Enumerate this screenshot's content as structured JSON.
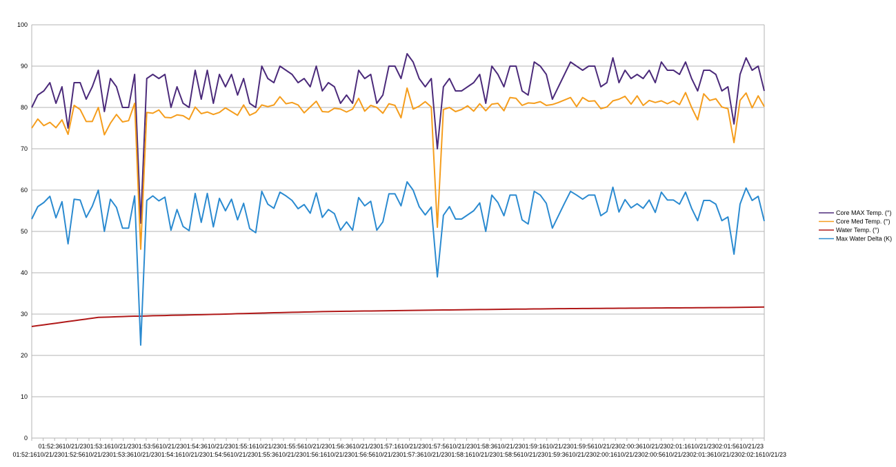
{
  "chart_data": {
    "type": "line",
    "title": "",
    "xlabel": "",
    "ylabel": "",
    "ylim": [
      0,
      100
    ],
    "yticks": [
      0,
      10,
      20,
      30,
      40,
      50,
      60,
      70,
      80,
      90,
      100
    ],
    "grid": "horizontal",
    "legend_position": "right",
    "x_tick_labels_row1": [
      "01:52:36",
      "10/21/23",
      "01:53:16",
      "10/21/23",
      "01:53:56",
      "10/21/23",
      "01:54:36",
      "10/21/23",
      "01:55:16",
      "10/21/23",
      "01:55:56",
      "10/21/23",
      "01:56:36",
      "10/21/23",
      "01:57:16",
      "10/21/23",
      "01:57:56",
      "10/21/23",
      "01:58:36",
      "10/21/23",
      "01:59:16",
      "10/21/23",
      "01:59:56",
      "10/21/23",
      "02:00:36",
      "10/21/23",
      "02:01:16",
      "10/21/23",
      "02:01:56",
      "10/21/23"
    ],
    "x_tick_labels_row2": [
      "01:52:16",
      "10/21/23",
      "01:52:56",
      "10/21/23",
      "01:53:36",
      "10/21/23",
      "01:54:16",
      "10/21/23",
      "01:54:56",
      "10/21/23",
      "01:55:36",
      "10/21/23",
      "01:56:16",
      "10/21/23",
      "01:56:56",
      "10/21/23",
      "01:57:36",
      "10/21/23",
      "01:58:16",
      "10/21/23",
      "01:58:56",
      "10/21/23",
      "01:59:36",
      "10/21/23",
      "02:00:16",
      "10/21/23",
      "02:00:56",
      "10/21/23",
      "02:01:36",
      "10/21/23",
      "02:02:16",
      "10/21/23"
    ],
    "series": [
      {
        "name": "Core MAX Temp. (°)",
        "color": "#4b2a7a",
        "values": [
          80,
          83,
          84,
          86,
          81,
          85,
          75,
          86,
          86,
          82,
          85,
          89,
          79,
          87,
          85,
          80,
          80,
          88,
          52,
          87,
          88,
          87,
          88,
          80,
          85,
          81,
          80,
          89,
          82,
          89,
          81,
          88,
          85,
          88,
          83,
          87,
          81,
          80,
          90,
          87,
          86,
          90,
          89,
          88,
          86,
          87,
          85,
          90,
          84,
          86,
          85,
          81,
          83,
          81,
          89,
          87,
          88,
          81,
          83,
          90,
          90,
          87,
          93,
          91,
          87,
          85,
          87,
          70,
          85,
          87,
          84,
          84,
          85,
          86,
          88,
          81,
          90,
          88,
          85,
          90,
          90,
          84,
          83,
          91,
          90,
          88,
          82,
          85,
          88,
          91,
          90,
          89,
          90,
          90,
          85,
          86,
          92,
          86,
          89,
          87,
          88,
          87,
          89,
          86,
          91,
          89,
          89,
          88,
          91,
          87,
          84,
          89,
          89,
          88,
          84,
          85,
          76,
          88,
          92,
          89,
          90,
          84
        ]
      },
      {
        "name": "Core Med Temp. (°)",
        "color": "#f59d1c",
        "values": [
          75,
          77.2,
          75.6,
          76.4,
          75.1,
          77,
          73.5,
          80.5,
          79.5,
          76.6,
          76.6,
          80,
          73.4,
          76.2,
          78.3,
          76.5,
          76.8,
          81,
          45.7,
          78.8,
          78.6,
          79.4,
          77.6,
          77.5,
          78.2,
          78,
          77.1,
          80.1,
          78.5,
          78.9,
          78.3,
          78.8,
          79.9,
          79,
          78.1,
          80.6,
          78.1,
          78.8,
          80.6,
          80.2,
          80.6,
          82.6,
          80.9,
          81.2,
          80.6,
          78.7,
          80.1,
          81.5,
          79,
          78.9,
          79.8,
          79.6,
          78.9,
          79.6,
          82.2,
          79.1,
          80.5,
          80,
          78.6,
          80.9,
          80.5,
          77.5,
          84.7,
          79.6,
          80.3,
          81.4,
          80.1,
          51,
          79.5,
          80,
          79,
          79.5,
          80.4,
          79.1,
          80.9,
          79.2,
          80.8,
          81,
          79.2,
          82.4,
          82.2,
          80.5,
          81.1,
          81,
          81.4,
          80.5,
          80.7,
          81.2,
          81.8,
          82.4,
          80.2,
          82.4,
          81.5,
          81.6,
          79.7,
          80.1,
          81.6,
          82,
          82.7,
          80.8,
          82.8,
          80.5,
          81.7,
          81.2,
          81.6,
          80.9,
          81.6,
          80.7,
          83.6,
          80,
          77,
          83.3,
          81.7,
          82.1,
          80.1,
          79.7,
          71.5,
          81.7,
          83.5,
          79.9,
          82.8,
          80.2
        ]
      },
      {
        "name": "Water Temp. (°)",
        "color": "#b01818",
        "values": [
          27,
          27.2,
          27.4,
          27.6,
          27.8,
          28,
          28.2,
          28.4,
          28.6,
          28.8,
          29,
          29.2,
          29.25,
          29.3,
          29.35,
          29.4,
          29.45,
          29.5,
          29.5,
          29.55,
          29.6,
          29.62,
          29.65,
          29.7,
          29.73,
          29.76,
          29.8,
          29.83,
          29.86,
          29.9,
          29.93,
          29.96,
          30,
          30.05,
          30.1,
          30.13,
          30.16,
          30.2,
          30.25,
          30.3,
          30.33,
          30.36,
          30.4,
          30.43,
          30.46,
          30.5,
          30.53,
          30.56,
          30.6,
          30.62,
          30.64,
          30.66,
          30.68,
          30.7,
          30.72,
          30.74,
          30.76,
          30.78,
          30.8,
          30.82,
          30.84,
          30.86,
          30.88,
          30.9,
          30.92,
          30.94,
          30.96,
          30.98,
          31,
          31.01,
          31.02,
          31.04,
          31.06,
          31.08,
          31.1,
          31.11,
          31.12,
          31.14,
          31.16,
          31.18,
          31.2,
          31.21,
          31.22,
          31.24,
          31.26,
          31.28,
          31.3,
          31.31,
          31.32,
          31.33,
          31.34,
          31.35,
          31.36,
          31.37,
          31.38,
          31.39,
          31.4,
          31.41,
          31.42,
          31.43,
          31.44,
          31.45,
          31.46,
          31.47,
          31.48,
          31.49,
          31.5,
          31.51,
          31.52,
          31.53,
          31.54,
          31.55,
          31.56,
          31.57,
          31.58,
          31.59,
          31.6,
          31.62,
          31.64,
          31.66,
          31.68,
          31.7
        ]
      },
      {
        "name": "Max Water Delta (K)",
        "color": "#2a8ad0",
        "values": [
          53,
          56,
          57,
          58.5,
          53.3,
          57.2,
          47,
          57.8,
          57.6,
          53.4,
          56.1,
          60,
          50,
          57.8,
          55.8,
          50.8,
          50.8,
          58.6,
          22.5,
          57.5,
          58.6,
          57.4,
          58.3,
          50.3,
          55.3,
          51.2,
          50.2,
          59.2,
          52.2,
          59.2,
          51.1,
          58,
          55,
          57.8,
          52.8,
          56.8,
          50.7,
          49.7,
          59.7,
          56.6,
          55.6,
          59.5,
          58.6,
          57.5,
          55.5,
          56.5,
          54.4,
          59.3,
          53.4,
          55.3,
          54.3,
          50.3,
          52.3,
          50.3,
          58.2,
          56.2,
          57.3,
          50.3,
          52.3,
          59.1,
          59.1,
          56.2,
          62,
          60,
          56,
          54,
          55.9,
          39,
          53.9,
          56,
          53,
          53,
          54,
          55,
          56.9,
          50,
          58.8,
          57,
          53.8,
          58.8,
          58.8,
          52.8,
          51.8,
          59.7,
          58.8,
          56.8,
          50.8,
          53.8,
          56.8,
          59.7,
          58.8,
          57.8,
          58.8,
          58.8,
          53.8,
          54.8,
          60.7,
          54.7,
          57.7,
          55.7,
          56.7,
          55.6,
          57.6,
          54.6,
          59.5,
          57.6,
          57.6,
          56.6,
          59.5,
          55.6,
          52.6,
          57.5,
          57.5,
          56.6,
          52.6,
          53.5,
          44.5,
          56.6,
          60.5,
          57.5,
          58.5,
          52.5
        ]
      }
    ]
  }
}
